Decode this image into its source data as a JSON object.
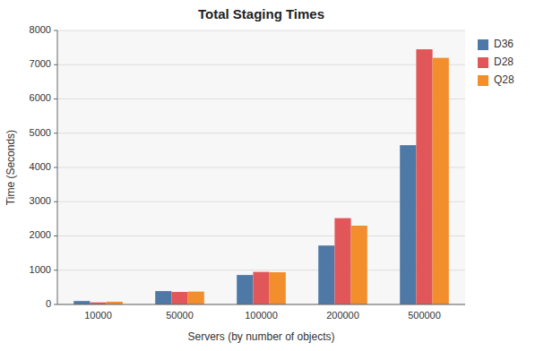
{
  "chart_data": {
    "type": "bar",
    "title": "Total Staging Times",
    "xlabel": "Servers (by number of objects)",
    "ylabel": "Time (Seconds)",
    "categories": [
      "10000",
      "50000",
      "100000",
      "200000",
      "500000"
    ],
    "series": [
      {
        "name": "D36",
        "color": "#4e79a7",
        "values": [
          100,
          390,
          860,
          1720,
          4650
        ]
      },
      {
        "name": "D28",
        "color": "#e15759",
        "values": [
          60,
          365,
          950,
          2520,
          7450
        ]
      },
      {
        "name": "Q28",
        "color": "#f28e2b",
        "values": [
          80,
          375,
          940,
          2300,
          7200
        ]
      }
    ],
    "ylim": [
      0,
      8000
    ],
    "yticks": [
      0,
      1000,
      2000,
      3000,
      4000,
      5000,
      6000,
      7000,
      8000
    ],
    "grid": true,
    "legend": "right"
  }
}
